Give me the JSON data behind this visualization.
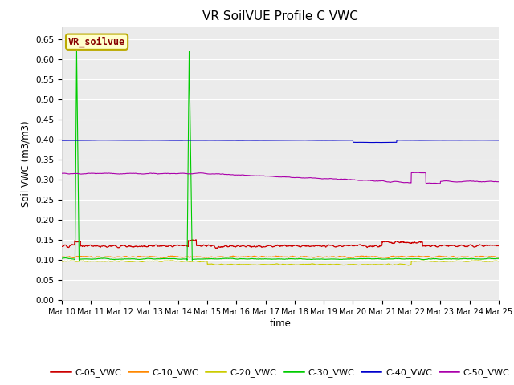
{
  "title": "VR SoilVUE Profile C VWC",
  "xlabel": "time",
  "ylabel": "Soil VWC (m3/m3)",
  "ylim": [
    0.0,
    0.68
  ],
  "yticks": [
    0.0,
    0.05,
    0.1,
    0.15,
    0.2,
    0.25,
    0.3,
    0.35,
    0.4,
    0.45,
    0.5,
    0.55,
    0.6,
    0.65
  ],
  "xtick_labels": [
    "Mar 10",
    "Mar 11",
    "Mar 12",
    "Mar 13",
    "Mar 14",
    "Mar 15",
    "Mar 16",
    "Mar 17",
    "Mar 18",
    "Mar 19",
    "Mar 20",
    "Mar 21",
    "Mar 22",
    "Mar 23",
    "Mar 24",
    "Mar 25"
  ],
  "legend_label": "VR_soilvue",
  "legend_bg": "#ffffcc",
  "legend_edge": "#bbaa00",
  "legend_text_color": "#880000",
  "series": {
    "C-05_VWC": {
      "color": "#cc0000",
      "lw": 0.8
    },
    "C-10_VWC": {
      "color": "#ff8800",
      "lw": 0.8
    },
    "C-20_VWC": {
      "color": "#cccc00",
      "lw": 0.8
    },
    "C-30_VWC": {
      "color": "#00cc00",
      "lw": 0.8
    },
    "C-40_VWC": {
      "color": "#0000cc",
      "lw": 0.8
    },
    "C-50_VWC": {
      "color": "#aa00aa",
      "lw": 0.8
    }
  },
  "bg_color": "#ebebeb",
  "grid_color": "#ffffff",
  "grid_lw": 0.8
}
